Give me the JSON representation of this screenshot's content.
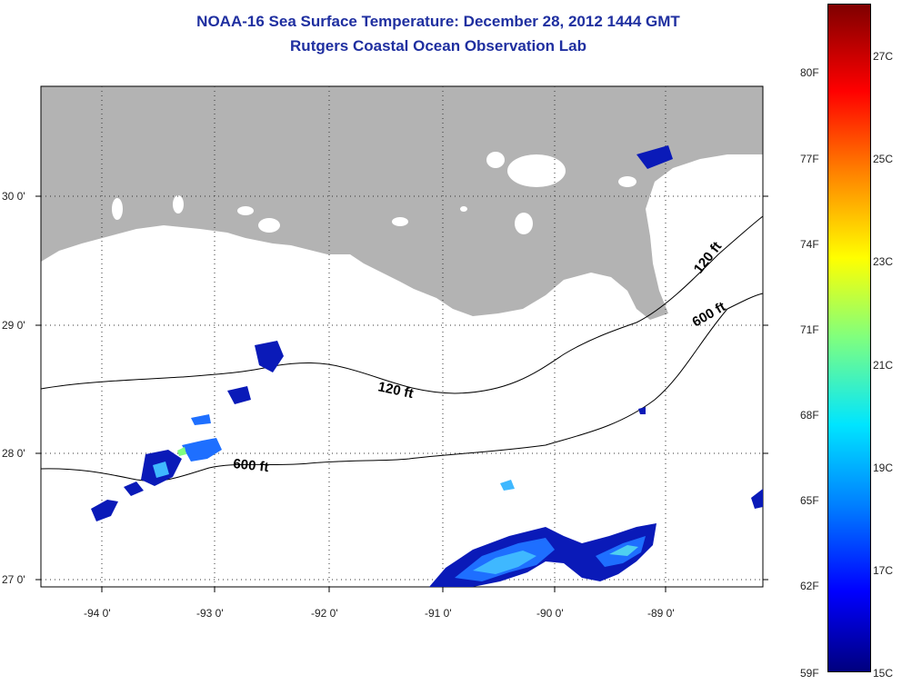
{
  "title": {
    "line1": "NOAA-16 Sea Surface Temperature:  December 28, 2012 1444 GMT",
    "line2": "Rutgers Coastal Ocean Observation Lab"
  },
  "lat_labels": [
    "30 0'",
    "29 0'",
    "28 0'",
    "27 0'"
  ],
  "lon_labels": [
    "-94 0'",
    "-93 0'",
    "-92 0'",
    "-91 0'",
    "-90 0'",
    "-89 0'"
  ],
  "contours": {
    "c120_main": "120 ft",
    "c600_main": "600 ft",
    "c120_east": "120 ft",
    "c600_east": "600 ft"
  },
  "colorbar": {
    "fahrenheit": [
      "80F",
      "77F",
      "74F",
      "71F",
      "68F",
      "65F",
      "62F",
      "59F"
    ],
    "celsius": [
      "27C",
      "25C",
      "23C",
      "21C",
      "19C",
      "17C",
      "15C"
    ]
  },
  "colors": {
    "land": "#b3b3b3",
    "title": "#1f2fa0",
    "sst_cold": "#0000c8",
    "sst_mid": "#1e90ff",
    "sst_warm": "#00e0e0"
  }
}
